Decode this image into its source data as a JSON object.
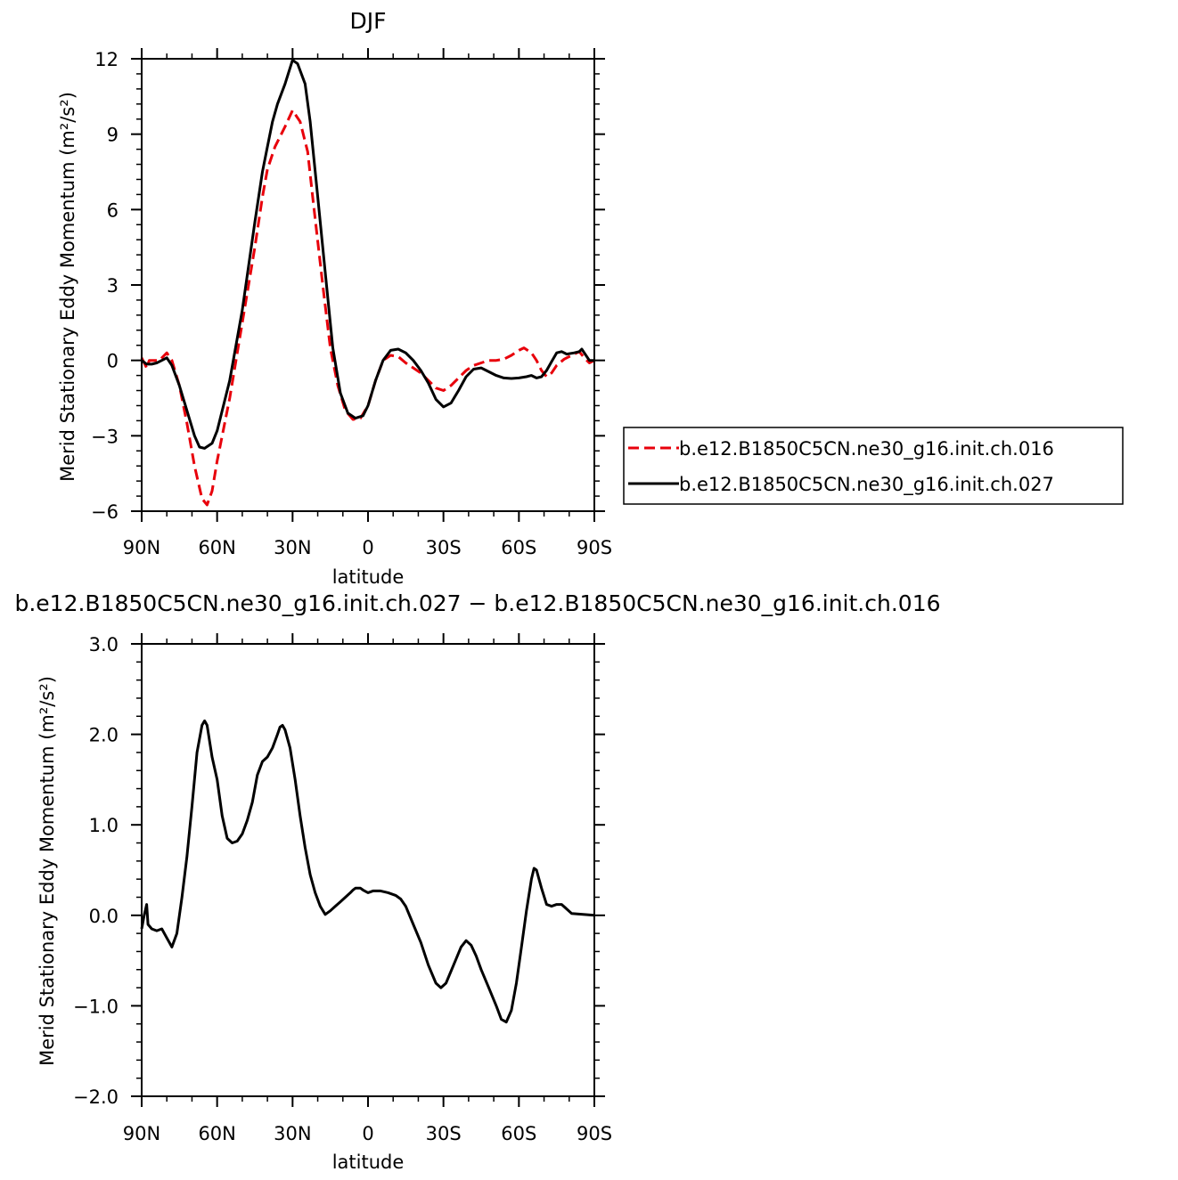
{
  "chart_data": [
    {
      "type": "line",
      "title": "DJF",
      "xlabel": "latitude",
      "ylabel": "Merid Stationary Eddy Momentum (m²/s²)",
      "xlim": [
        90,
        -90
      ],
      "ylim": [
        -6,
        12
      ],
      "x_ticks": [
        90,
        60,
        30,
        0,
        -30,
        -60,
        -90
      ],
      "x_tick_labels": [
        "90N",
        "60N",
        "30N",
        "0",
        "30S",
        "60S",
        "90S"
      ],
      "y_ticks": [
        -6,
        -3,
        0,
        3,
        6,
        9,
        12
      ],
      "y_tick_labels": [
        "−6",
        "−3",
        "0",
        "3",
        "6",
        "9",
        "12"
      ],
      "legend_position": "right",
      "series": [
        {
          "name": "b.e12.B1850C5CN.ne30_g16.init.ch.016",
          "color": "#e8000b",
          "dash": "dashed",
          "points": [
            [
              90,
              0.1
            ],
            [
              88,
              -0.3
            ],
            [
              87,
              0
            ],
            [
              85,
              0
            ],
            [
              83,
              0
            ],
            [
              80,
              0.3
            ],
            [
              78,
              0
            ],
            [
              75,
              -1
            ],
            [
              72,
              -2.5
            ],
            [
              69,
              -4.2
            ],
            [
              66,
              -5.5
            ],
            [
              64,
              -5.75
            ],
            [
              62,
              -5.2
            ],
            [
              60,
              -4
            ],
            [
              55,
              -1.5
            ],
            [
              50,
              1.5
            ],
            [
              45,
              4.5
            ],
            [
              42,
              6.5
            ],
            [
              40,
              7.6
            ],
            [
              37,
              8.5
            ],
            [
              33,
              9.3
            ],
            [
              30,
              9.95
            ],
            [
              27,
              9.5
            ],
            [
              24,
              8.3
            ],
            [
              22,
              6.5
            ],
            [
              18,
              3
            ],
            [
              15,
              0.5
            ],
            [
              12,
              -1
            ],
            [
              9,
              -2
            ],
            [
              6,
              -2.35
            ],
            [
              3,
              -2.3
            ],
            [
              0,
              -1.8
            ],
            [
              -3,
              -0.8
            ],
            [
              -6,
              0
            ],
            [
              -9,
              0.2
            ],
            [
              -12,
              0.15
            ],
            [
              -15,
              -0.1
            ],
            [
              -18,
              -0.3
            ],
            [
              -21,
              -0.5
            ],
            [
              -24,
              -0.8
            ],
            [
              -27,
              -1.1
            ],
            [
              -30,
              -1.2
            ],
            [
              -33,
              -1
            ],
            [
              -36,
              -0.7
            ],
            [
              -39,
              -0.4
            ],
            [
              -42,
              -0.2
            ],
            [
              -45,
              -0.1
            ],
            [
              -48,
              0
            ],
            [
              -51,
              0
            ],
            [
              -54,
              0.05
            ],
            [
              -57,
              0.2
            ],
            [
              -60,
              0.4
            ],
            [
              -62,
              0.5
            ],
            [
              -65,
              0.3
            ],
            [
              -67,
              0
            ],
            [
              -69,
              -0.4
            ],
            [
              -71,
              -0.65
            ],
            [
              -73,
              -0.5
            ],
            [
              -75,
              -0.2
            ],
            [
              -78,
              0.05
            ],
            [
              -81,
              0.2
            ],
            [
              -84,
              0.35
            ],
            [
              -86,
              0.1
            ],
            [
              -88,
              -0.1
            ],
            [
              -90,
              0
            ]
          ]
        },
        {
          "name": "b.e12.B1850C5CN.ne30_g16.init.ch.027",
          "color": "#000000",
          "dash": "solid",
          "points": [
            [
              90,
              0
            ],
            [
              88,
              -0.15
            ],
            [
              86,
              -0.15
            ],
            [
              84,
              -0.1
            ],
            [
              82,
              0
            ],
            [
              80,
              0.1
            ],
            [
              78,
              -0.2
            ],
            [
              75,
              -1
            ],
            [
              72,
              -2
            ],
            [
              69,
              -3
            ],
            [
              67,
              -3.45
            ],
            [
              65,
              -3.5
            ],
            [
              62,
              -3.3
            ],
            [
              60,
              -2.8
            ],
            [
              55,
              -0.8
            ],
            [
              50,
              2
            ],
            [
              45,
              5.5
            ],
            [
              42,
              7.5
            ],
            [
              40,
              8.5
            ],
            [
              38,
              9.5
            ],
            [
              36,
              10.2
            ],
            [
              33,
              11
            ],
            [
              30,
              11.95
            ],
            [
              28,
              11.8
            ],
            [
              25,
              11
            ],
            [
              23,
              9.5
            ],
            [
              20,
              6.5
            ],
            [
              17,
              3.5
            ],
            [
              14,
              0.5
            ],
            [
              11,
              -1.3
            ],
            [
              8,
              -2.1
            ],
            [
              5,
              -2.3
            ],
            [
              2,
              -2.2
            ],
            [
              0,
              -1.8
            ],
            [
              -3,
              -0.8
            ],
            [
              -6,
              0
            ],
            [
              -9,
              0.4
            ],
            [
              -12,
              0.45
            ],
            [
              -15,
              0.3
            ],
            [
              -18,
              0
            ],
            [
              -21,
              -0.4
            ],
            [
              -24,
              -0.9
            ],
            [
              -27,
              -1.55
            ],
            [
              -30,
              -1.85
            ],
            [
              -33,
              -1.7
            ],
            [
              -36,
              -1.2
            ],
            [
              -39,
              -0.65
            ],
            [
              -42,
              -0.35
            ],
            [
              -45,
              -0.3
            ],
            [
              -48,
              -0.45
            ],
            [
              -51,
              -0.6
            ],
            [
              -54,
              -0.7
            ],
            [
              -57,
              -0.72
            ],
            [
              -60,
              -0.7
            ],
            [
              -63,
              -0.65
            ],
            [
              -65,
              -0.6
            ],
            [
              -67,
              -0.7
            ],
            [
              -69,
              -0.65
            ],
            [
              -71,
              -0.4
            ],
            [
              -73,
              -0.05
            ],
            [
              -75,
              0.3
            ],
            [
              -77,
              0.35
            ],
            [
              -79,
              0.25
            ],
            [
              -82,
              0.3
            ],
            [
              -84,
              0.35
            ],
            [
              -85,
              0.45
            ],
            [
              -86,
              0.3
            ],
            [
              -88,
              0
            ],
            [
              -90,
              0
            ]
          ]
        }
      ]
    },
    {
      "type": "line",
      "title": "b.e12.B1850C5CN.ne30_g16.init.ch.027 − b.e12.B1850C5CN.ne30_g16.init.ch.016",
      "xlabel": "latitude",
      "ylabel": "Merid Stationary Eddy Momentum (m²/s²)",
      "xlim": [
        90,
        -90
      ],
      "ylim": [
        -2,
        3
      ],
      "x_ticks": [
        90,
        60,
        30,
        0,
        -30,
        -60,
        -90
      ],
      "x_tick_labels": [
        "90N",
        "60N",
        "30N",
        "0",
        "30S",
        "60S",
        "90S"
      ],
      "y_ticks": [
        -2,
        -1,
        0,
        1,
        2,
        3
      ],
      "y_tick_labels": [
        "−2.0",
        "−1.0",
        "0.0",
        "1.0",
        "2.0",
        "3.0"
      ],
      "series": [
        {
          "color": "#000000",
          "dash": "solid",
          "points": [
            [
              90,
              -0.15
            ],
            [
              89,
              0
            ],
            [
              88,
              0.12
            ],
            [
              87.5,
              -0.1
            ],
            [
              86,
              -0.15
            ],
            [
              84,
              -0.17
            ],
            [
              82,
              -0.15
            ],
            [
              80,
              -0.25
            ],
            [
              78,
              -0.35
            ],
            [
              76,
              -0.2
            ],
            [
              74,
              0.2
            ],
            [
              72,
              0.65
            ],
            [
              70,
              1.2
            ],
            [
              68,
              1.8
            ],
            [
              66,
              2.1
            ],
            [
              65,
              2.15
            ],
            [
              64,
              2.1
            ],
            [
              62,
              1.75
            ],
            [
              60,
              1.5
            ],
            [
              58,
              1.1
            ],
            [
              56,
              0.85
            ],
            [
              54,
              0.8
            ],
            [
              52,
              0.82
            ],
            [
              50,
              0.9
            ],
            [
              48,
              1.05
            ],
            [
              46,
              1.25
            ],
            [
              44,
              1.55
            ],
            [
              42,
              1.7
            ],
            [
              40,
              1.75
            ],
            [
              38,
              1.85
            ],
            [
              36,
              2
            ],
            [
              35,
              2.08
            ],
            [
              34,
              2.1
            ],
            [
              33,
              2.05
            ],
            [
              31,
              1.85
            ],
            [
              29,
              1.5
            ],
            [
              27,
              1.1
            ],
            [
              25,
              0.75
            ],
            [
              23,
              0.45
            ],
            [
              21,
              0.25
            ],
            [
              19,
              0.1
            ],
            [
              17,
              0.01
            ],
            [
              15,
              0.05
            ],
            [
              13,
              0.1
            ],
            [
              11,
              0.15
            ],
            [
              9,
              0.2
            ],
            [
              7,
              0.25
            ],
            [
              6,
              0.28
            ],
            [
              5,
              0.3
            ],
            [
              3,
              0.3
            ],
            [
              2,
              0.28
            ],
            [
              0,
              0.25
            ],
            [
              -2,
              0.27
            ],
            [
              -5,
              0.27
            ],
            [
              -8,
              0.25
            ],
            [
              -11,
              0.22
            ],
            [
              -13,
              0.18
            ],
            [
              -15,
              0.1
            ],
            [
              -18,
              -0.1
            ],
            [
              -21,
              -0.3
            ],
            [
              -24,
              -0.55
            ],
            [
              -27,
              -0.75
            ],
            [
              -29,
              -0.8
            ],
            [
              -31,
              -0.75
            ],
            [
              -34,
              -0.55
            ],
            [
              -37,
              -0.35
            ],
            [
              -39,
              -0.28
            ],
            [
              -41,
              -0.33
            ],
            [
              -43,
              -0.45
            ],
            [
              -45,
              -0.6
            ],
            [
              -48,
              -0.8
            ],
            [
              -51,
              -1
            ],
            [
              -53,
              -1.15
            ],
            [
              -55,
              -1.18
            ],
            [
              -57,
              -1.05
            ],
            [
              -59,
              -0.75
            ],
            [
              -61,
              -0.35
            ],
            [
              -63,
              0.05
            ],
            [
              -65,
              0.4
            ],
            [
              -66,
              0.52
            ],
            [
              -67,
              0.5
            ],
            [
              -69,
              0.3
            ],
            [
              -71,
              0.12
            ],
            [
              -73,
              0.1
            ],
            [
              -75,
              0.12
            ],
            [
              -77,
              0.12
            ],
            [
              -79,
              0.07
            ],
            [
              -81,
              0.02
            ],
            [
              -90,
              0
            ]
          ]
        }
      ]
    }
  ]
}
